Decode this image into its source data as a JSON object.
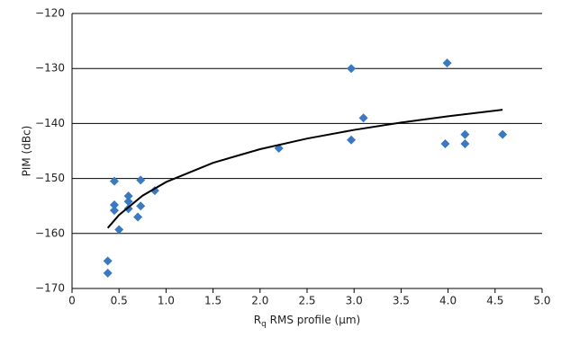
{
  "chart_data": {
    "type": "scatter",
    "y_label": "PIM (dBc)",
    "x_label": {
      "symbol": "R",
      "subscript": "q",
      "text": " RMS profile (μm)"
    },
    "xlim": [
      0,
      5
    ],
    "ylim": [
      -170,
      -120
    ],
    "xticks": [
      0,
      0.5,
      {
        "value": 1,
        "label": "1.0"
      },
      1.5,
      {
        "value": 2,
        "label": "2.0"
      },
      2.5,
      {
        "value": 3,
        "label": "3.0"
      },
      3.5,
      {
        "value": 4,
        "label": "4.0"
      },
      4.5,
      {
        "value": 5,
        "label": "5.0"
      }
    ],
    "yticks": [
      {
        "value": -170,
        "label": "−170"
      },
      {
        "value": -160,
        "label": "−160"
      },
      {
        "value": -150,
        "label": "−150"
      },
      {
        "value": -140,
        "label": "−140"
      },
      {
        "value": -130,
        "label": "−130"
      },
      {
        "value": -120,
        "label": "−120"
      }
    ],
    "grid": true,
    "color": "#3a78c2",
    "x": [
      0.38,
      0.38,
      0.45,
      0.45,
      0.45,
      0.5,
      0.6,
      0.6,
      0.6,
      0.7,
      0.73,
      0.73,
      0.88,
      2.2,
      2.97,
      2.97,
      3.1,
      3.97,
      3.99,
      4.18,
      4.18,
      4.58
    ],
    "values": [
      -165,
      -167.2,
      -150.5,
      -154.8,
      -155.8,
      -159.3,
      -153.2,
      -154.2,
      -155.5,
      -157,
      -150.3,
      -155,
      -152.2,
      -144.5,
      -130,
      -143,
      -139,
      -143.7,
      -129,
      -142,
      -143.7,
      -142
    ],
    "trendline": {
      "color": "#000000",
      "x": [
        0.38,
        0.5,
        0.75,
        1,
        1.5,
        2,
        2.5,
        3,
        3.5,
        4,
        4.58
      ],
      "y": [
        -159,
        -156.63,
        -153.13,
        -150.65,
        -147.15,
        -144.67,
        -142.74,
        -141.17,
        -139.84,
        -138.69,
        -137.5
      ]
    }
  }
}
